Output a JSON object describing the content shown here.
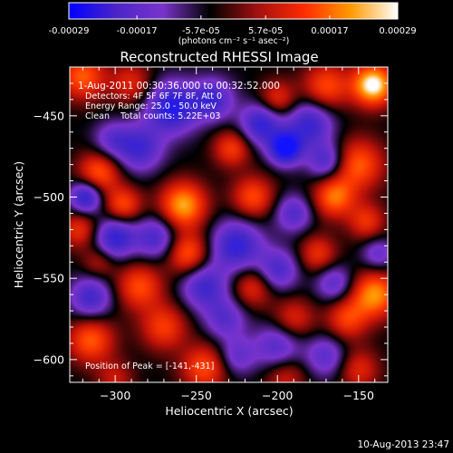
{
  "chart_data": {
    "type": "heatmap",
    "title": "Reconstructed RHESSI Image",
    "colorbar": {
      "range": [
        -0.00029,
        0.00029
      ],
      "tick_labels": [
        "-0.00029",
        "-0.00017",
        "-5.7e-05",
        "5.7e-05",
        "0.00017",
        "0.00029"
      ],
      "tick_values": [
        -0.00029,
        -0.00017,
        -5.7e-05,
        5.7e-05,
        0.00017,
        0.00029
      ],
      "unit_label": "(photons cm⁻² s⁻¹ asec⁻²)",
      "colors": [
        "#0000ff",
        "#4b24c8",
        "#7a33cc",
        "#000000",
        "#a01010",
        "#ff2a00",
        "#ff9a00",
        "#ffffff"
      ]
    },
    "xlabel": "Heliocentric X (arcsec)",
    "ylabel": "Heliocentric Y (arcsec)",
    "xlim": [
      -328,
      -132
    ],
    "ylim": [
      -614,
      -420
    ],
    "xticks": [
      -300,
      -250,
      -200,
      -150
    ],
    "xtick_labels": [
      "−300",
      "−250",
      "−200",
      "−150"
    ],
    "yticks": [
      -450,
      -500,
      -550,
      -600
    ],
    "ytick_labels": [
      "−450",
      "−500",
      "−550",
      "−600"
    ],
    "annotations": [
      "1-Aug-2011 00:30:36.000 to 00:32:52.000",
      "Detectors: 4F 5F 6F 7F 8F, Att 0",
      "Energy Range: 25.0 - 50.0 keV",
      "Clean    Total counts: 5.22E+03"
    ],
    "peak_label": "Position of Peak = [-141,-431]",
    "peak": {
      "x": -141,
      "y": -431
    },
    "blobs": [
      {
        "x": -141,
        "y": -431,
        "v": 1.0,
        "s": 9
      },
      {
        "x": -170,
        "y": -432,
        "v": 0.55,
        "s": 10
      },
      {
        "x": -320,
        "y": -426,
        "v": 0.6,
        "s": 10
      },
      {
        "x": -290,
        "y": -430,
        "v": 0.4,
        "s": 9
      },
      {
        "x": -200,
        "y": -440,
        "v": 0.45,
        "s": 8
      },
      {
        "x": -228,
        "y": -470,
        "v": 0.5,
        "s": 8
      },
      {
        "x": -215,
        "y": -500,
        "v": 0.55,
        "s": 9
      },
      {
        "x": -258,
        "y": -505,
        "v": 0.8,
        "s": 10
      },
      {
        "x": -255,
        "y": -535,
        "v": 0.6,
        "s": 9
      },
      {
        "x": -285,
        "y": -555,
        "v": 0.55,
        "s": 10
      },
      {
        "x": -310,
        "y": -485,
        "v": 0.6,
        "s": 9
      },
      {
        "x": -295,
        "y": -505,
        "v": 0.55,
        "s": 8
      },
      {
        "x": -322,
        "y": -520,
        "v": 0.45,
        "s": 8
      },
      {
        "x": -310,
        "y": -540,
        "v": 0.3,
        "s": 7
      },
      {
        "x": -150,
        "y": -480,
        "v": 0.6,
        "s": 11
      },
      {
        "x": -165,
        "y": -500,
        "v": 0.65,
        "s": 9
      },
      {
        "x": -145,
        "y": -515,
        "v": 0.45,
        "s": 8
      },
      {
        "x": -175,
        "y": -535,
        "v": 0.45,
        "s": 8
      },
      {
        "x": -140,
        "y": -560,
        "v": 0.75,
        "s": 10
      },
      {
        "x": -157,
        "y": -575,
        "v": 0.5,
        "s": 9
      },
      {
        "x": -215,
        "y": -555,
        "v": 0.45,
        "s": 9
      },
      {
        "x": -190,
        "y": -575,
        "v": 0.4,
        "s": 9
      },
      {
        "x": -270,
        "y": -580,
        "v": 0.5,
        "s": 10
      },
      {
        "x": -315,
        "y": -588,
        "v": 0.6,
        "s": 10
      },
      {
        "x": -245,
        "y": -605,
        "v": 0.55,
        "s": 10
      },
      {
        "x": -195,
        "y": -610,
        "v": 0.35,
        "s": 9
      },
      {
        "x": -150,
        "y": -606,
        "v": 0.4,
        "s": 9
      },
      {
        "x": -300,
        "y": -612,
        "v": 0.3,
        "s": 8
      },
      {
        "x": -210,
        "y": -455,
        "v": -0.7,
        "s": 9
      },
      {
        "x": -195,
        "y": -470,
        "v": -1.0,
        "s": 7
      },
      {
        "x": -265,
        "y": -445,
        "v": -0.8,
        "s": 11
      },
      {
        "x": -240,
        "y": -440,
        "v": -0.6,
        "s": 9
      },
      {
        "x": -285,
        "y": -470,
        "v": -0.6,
        "s": 10
      },
      {
        "x": -302,
        "y": -465,
        "v": -0.4,
        "s": 8
      },
      {
        "x": -180,
        "y": -455,
        "v": -0.65,
        "s": 10
      },
      {
        "x": -170,
        "y": -478,
        "v": -0.55,
        "s": 8
      },
      {
        "x": -318,
        "y": -500,
        "v": -0.75,
        "s": 7
      },
      {
        "x": -300,
        "y": -525,
        "v": -0.7,
        "s": 9
      },
      {
        "x": -315,
        "y": -562,
        "v": -0.6,
        "s": 9
      },
      {
        "x": -275,
        "y": -525,
        "v": -0.55,
        "s": 9
      },
      {
        "x": -245,
        "y": -555,
        "v": -0.6,
        "s": 10
      },
      {
        "x": -225,
        "y": -530,
        "v": -0.7,
        "s": 11
      },
      {
        "x": -190,
        "y": -510,
        "v": -0.5,
        "s": 8
      },
      {
        "x": -200,
        "y": -545,
        "v": -0.55,
        "s": 9
      },
      {
        "x": -165,
        "y": -553,
        "v": -0.45,
        "s": 8
      },
      {
        "x": -232,
        "y": -575,
        "v": -0.45,
        "s": 9
      },
      {
        "x": -200,
        "y": -592,
        "v": -0.5,
        "s": 10
      },
      {
        "x": -170,
        "y": -598,
        "v": -0.45,
        "s": 9
      },
      {
        "x": -225,
        "y": -598,
        "v": -0.4,
        "s": 8
      },
      {
        "x": -138,
        "y": -535,
        "v": -0.4,
        "s": 7
      }
    ]
  },
  "footer": {
    "timestamp": "10-Aug-2013 23:47"
  }
}
